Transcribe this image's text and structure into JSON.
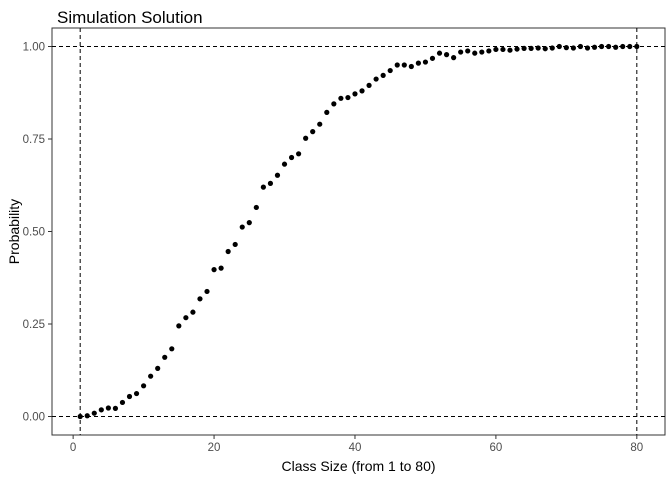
{
  "chart_data": {
    "type": "scatter",
    "title": "Simulation Solution",
    "xlabel": "Class Size (from 1 to 80)",
    "ylabel": "Probability",
    "xlim": [
      -3,
      84
    ],
    "ylim": [
      -0.05,
      1.05
    ],
    "x_ticks": [
      0,
      20,
      40,
      60,
      80
    ],
    "x_tick_labels": [
      "0",
      "20",
      "40",
      "60",
      "80"
    ],
    "y_ticks": [
      0,
      0.25,
      0.5,
      0.75,
      1
    ],
    "y_tick_labels": [
      "0.00",
      "0.25",
      "0.50",
      "0.75",
      "1.00"
    ],
    "grid": false,
    "reference_lines": {
      "horizontal": [
        0,
        1
      ],
      "vertical": [
        1,
        80
      ],
      "style": "dashed"
    },
    "point_color": "#000000",
    "x": [
      1,
      2,
      3,
      4,
      5,
      6,
      7,
      8,
      9,
      10,
      11,
      12,
      13,
      14,
      15,
      16,
      17,
      18,
      19,
      20,
      21,
      22,
      23,
      24,
      25,
      26,
      27,
      28,
      29,
      30,
      31,
      32,
      33,
      34,
      35,
      36,
      37,
      38,
      39,
      40,
      41,
      42,
      43,
      44,
      45,
      46,
      47,
      48,
      49,
      50,
      51,
      52,
      53,
      54,
      55,
      56,
      57,
      58,
      59,
      60,
      61,
      62,
      63,
      64,
      65,
      66,
      67,
      68,
      69,
      70,
      71,
      72,
      73,
      74,
      75,
      76,
      77,
      78,
      79,
      80
    ],
    "y": [
      0.0,
      0.002,
      0.009,
      0.018,
      0.023,
      0.022,
      0.038,
      0.054,
      0.062,
      0.083,
      0.109,
      0.13,
      0.16,
      0.183,
      0.245,
      0.267,
      0.282,
      0.318,
      0.338,
      0.397,
      0.401,
      0.446,
      0.465,
      0.512,
      0.524,
      0.565,
      0.62,
      0.63,
      0.652,
      0.682,
      0.7,
      0.71,
      0.752,
      0.77,
      0.79,
      0.822,
      0.845,
      0.86,
      0.862,
      0.872,
      0.88,
      0.895,
      0.912,
      0.922,
      0.935,
      0.95,
      0.95,
      0.946,
      0.955,
      0.958,
      0.968,
      0.982,
      0.978,
      0.97,
      0.985,
      0.988,
      0.982,
      0.985,
      0.988,
      0.992,
      0.992,
      0.99,
      0.993,
      0.995,
      0.995,
      0.996,
      0.994,
      0.996,
      1.0,
      0.997,
      0.996,
      1.0,
      0.996,
      0.998,
      1.0,
      1.0,
      0.998,
      1.0,
      1.0,
      1.0
    ]
  }
}
